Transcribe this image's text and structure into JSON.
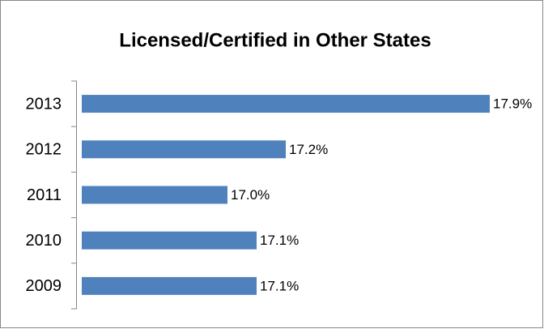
{
  "chart_data": {
    "type": "barh",
    "title": "Licensed/Certified in Other States",
    "categories": [
      "2013",
      "2012",
      "2011",
      "2010",
      "2009"
    ],
    "values": [
      17.9,
      17.2,
      17.0,
      17.1,
      17.1
    ],
    "value_labels": [
      "17.9%",
      "17.2%",
      "17.0%",
      "17.1%",
      "17.1%"
    ],
    "color": "#4f81bd",
    "xlim": [
      16.5,
      18.0
    ]
  }
}
